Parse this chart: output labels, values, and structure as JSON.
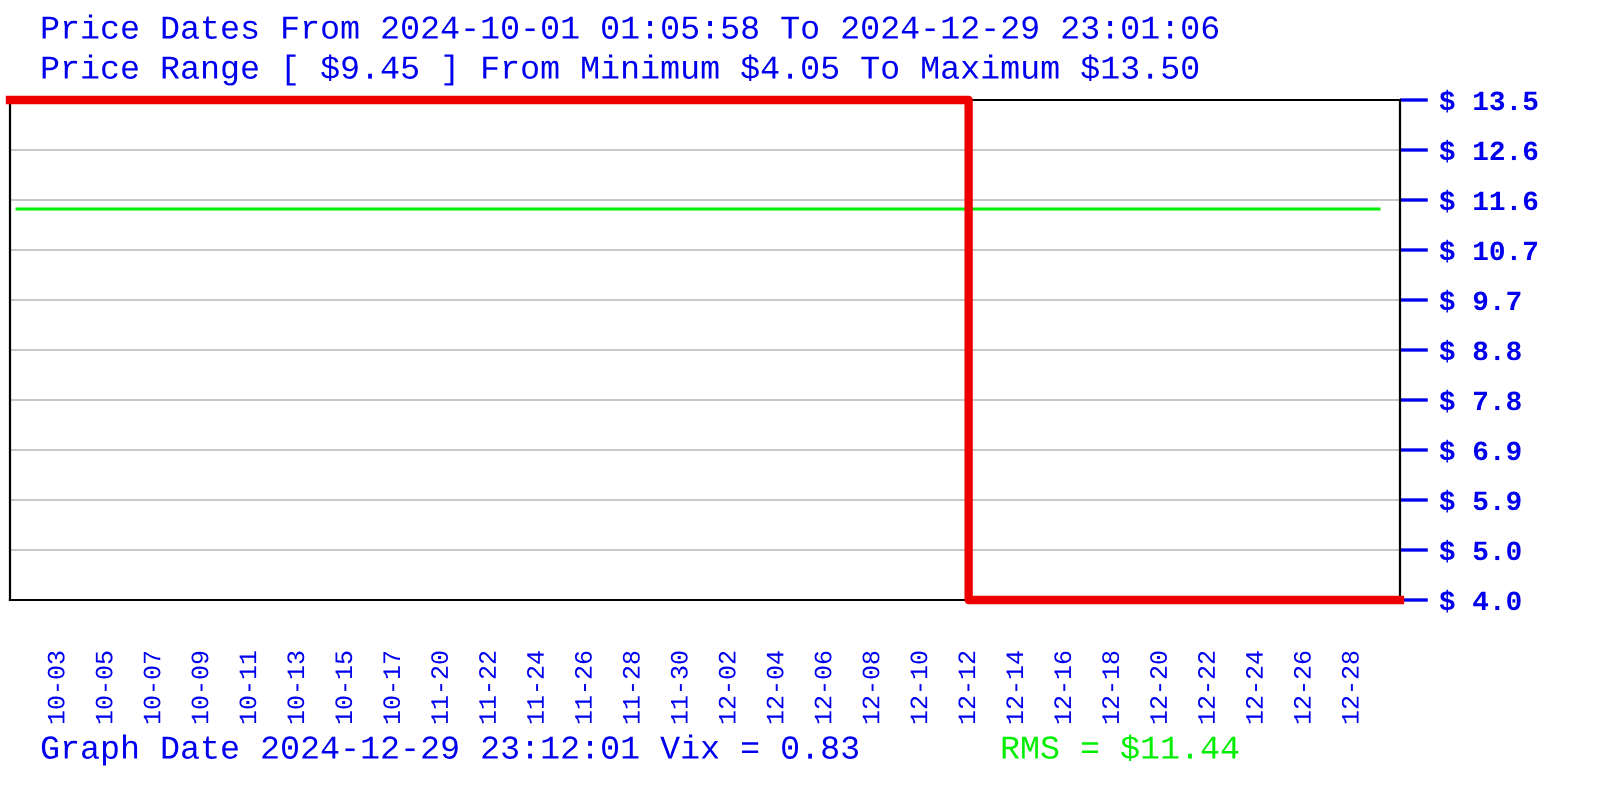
{
  "chart_data": {
    "type": "step",
    "title": "Price Dates From 2024-10-01 01:05:58 To 2024-12-29 23:01:06",
    "subtitle": "Price Range [ $9.45 ] From Minimum $4.05 To Maximum $13.50",
    "categories": [
      null,
      "10-03",
      "10-05",
      "10-07",
      "10-09",
      "10-11",
      "10-13",
      "10-15",
      "10-17",
      "11-20",
      "11-22",
      "11-24",
      "11-26",
      "11-28",
      "11-30",
      "12-02",
      "12-04",
      "12-06",
      "12-08",
      "12-10",
      "12-12",
      "12-14",
      "12-16",
      "12-18",
      "12-20",
      "12-22",
      "12-24",
      "12-26",
      "12-28",
      null
    ],
    "series": [
      {
        "color": "#ee0000",
        "values": [
          13.5,
          13.5,
          13.5,
          13.5,
          13.5,
          13.5,
          13.5,
          13.5,
          13.5,
          13.5,
          13.5,
          13.5,
          13.5,
          13.5,
          13.5,
          13.5,
          13.5,
          13.5,
          13.5,
          13.5,
          4.05,
          4.05,
          4.05,
          4.05,
          4.05,
          4.05,
          4.05,
          4.05,
          4.05,
          4.05
        ]
      }
    ],
    "ylim": [
      4.05,
      13.5
    ],
    "yticks": [
      {
        "value": 4.05,
        "label": "$ 4.0"
      },
      {
        "value": 4.995,
        "label": "$ 5.0"
      },
      {
        "value": 5.94,
        "label": "$ 5.9"
      },
      {
        "value": 6.885,
        "label": "$ 6.9"
      },
      {
        "value": 7.83,
        "label": "$ 7.8"
      },
      {
        "value": 8.775,
        "label": "$ 8.8"
      },
      {
        "value": 9.72,
        "label": "$ 9.7"
      },
      {
        "value": 10.665,
        "label": "$ 10.7"
      },
      {
        "value": 11.61,
        "label": "$ 11.6"
      },
      {
        "value": 12.555,
        "label": "$ 12.6"
      },
      {
        "value": 13.5,
        "label": "$ 13.5"
      }
    ],
    "ref_lines": [
      {
        "axis": "y",
        "value": 11.44,
        "label": "RMS = $11.44",
        "color": "#00ee00"
      }
    ],
    "annotations": [
      "Graph Date 2024-12-29 23:12:01 Vix = 0.83"
    ],
    "grid": "y",
    "legend": false,
    "marker": "none",
    "line_style": "solid"
  }
}
